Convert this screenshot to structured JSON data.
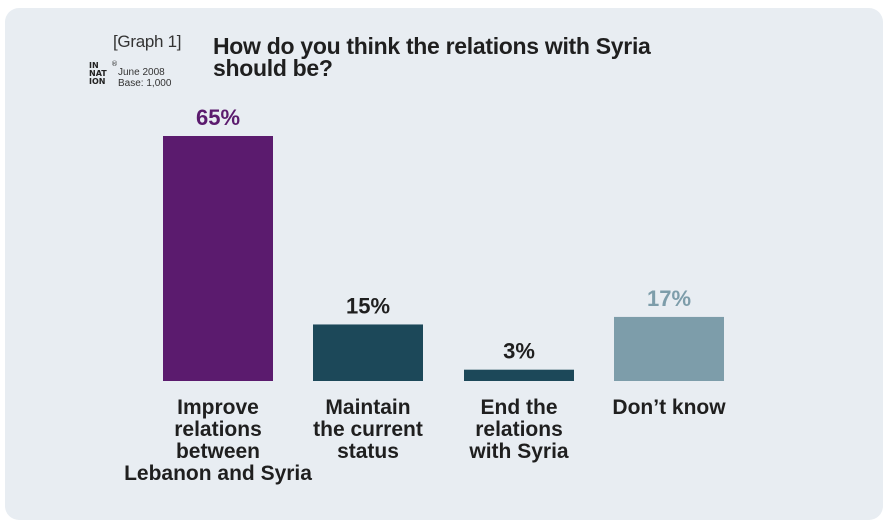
{
  "graph_tag": "[Graph 1]",
  "logo_text": "INFO INTER NATIONAL",
  "logo_reg": "®",
  "meta": {
    "date": "June 2008",
    "base": "Base: 1,000"
  },
  "chart_data": {
    "type": "bar",
    "title": "How do you think the relations with Syria should be?",
    "categories": [
      "Improve relations between Lebanon and Syria",
      "Maintain the current status",
      "End the relations with Syria",
      "Don’t know"
    ],
    "category_lines": [
      [
        "Improve",
        "relations",
        "between",
        "Lebanon and Syria"
      ],
      [
        "Maintain",
        "the current",
        "status"
      ],
      [
        "End the",
        "relations",
        "with Syria"
      ],
      [
        "Don’t know"
      ]
    ],
    "values": [
      65,
      15,
      3,
      17
    ],
    "value_labels": [
      "65%",
      "15%",
      "3%",
      "17%"
    ],
    "ylim": [
      0,
      65
    ],
    "grid": false,
    "colors": [
      "#5b1b6e",
      "#1c4859",
      "#1c4859",
      "#7d9daa"
    ],
    "label_colors": [
      "#5b1b6e",
      "#1f1f1f",
      "#1f1f1f",
      "#7d9daa"
    ]
  }
}
